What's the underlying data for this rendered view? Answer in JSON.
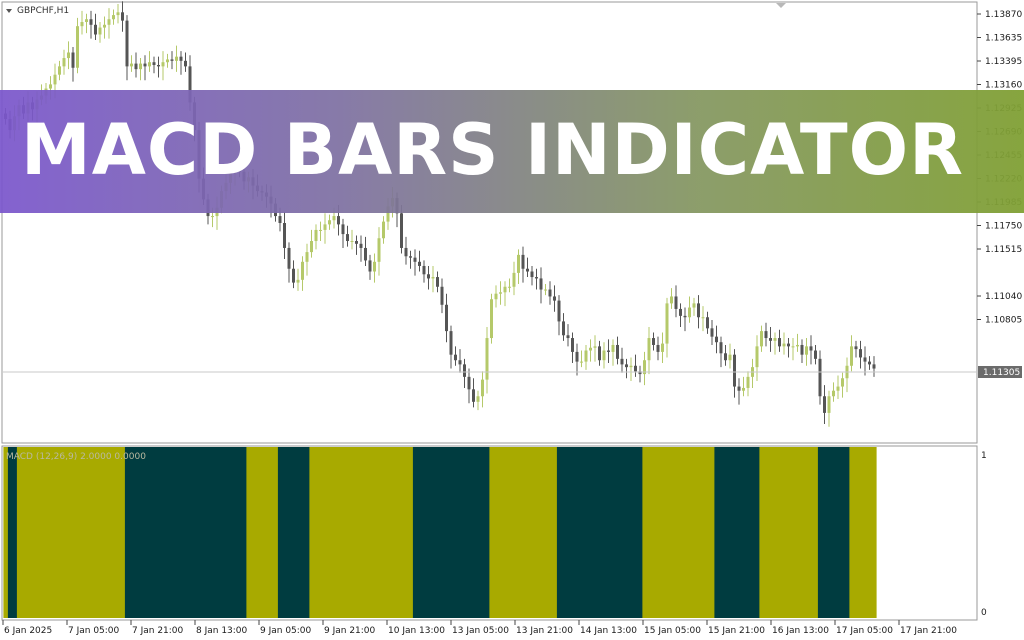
{
  "window": {
    "symbol_label": "GBPCHF,H1"
  },
  "banner": {
    "title": "MACD BARS INDICATOR"
  },
  "price_axis": {
    "labels": [
      "1.13870",
      "1.13635",
      "1.13395",
      "1.13160",
      "1.12925",
      "1.12690",
      "1.12455",
      "1.12220",
      "1.11985",
      "1.11750",
      "1.11515",
      "1.11040",
      "1.10805"
    ],
    "current_price": "1.11305"
  },
  "indicator": {
    "label": "MACD (12,26,9) 2.0000 0.0000",
    "scale_top": "1",
    "scale_bottom": "0",
    "colors": {
      "up": "#a8aa00",
      "down": "#003c40"
    }
  },
  "time_axis": {
    "labels": [
      "6 Jan 2025",
      "7 Jan 05:00",
      "7 Jan 21:00",
      "8 Jan 13:00",
      "9 Jan 05:00",
      "9 Jan 21:00",
      "10 Jan 13:00",
      "13 Jan 05:00",
      "13 Jan 21:00",
      "14 Jan 13:00",
      "15 Jan 05:00",
      "15 Jan 21:00",
      "16 Jan 13:00",
      "17 Jan 05:00",
      "17 Jan 21:00"
    ]
  },
  "candle_colors": {
    "bull": "#b5c96a",
    "bear": "#555555"
  },
  "chart_data": {
    "type": "candlestick",
    "symbol": "GBPCHF",
    "timeframe": "H1",
    "ylim": [
      1.1075,
      1.1391
    ],
    "close": [
      1.1308,
      1.13,
      1.131,
      1.1318,
      1.1312,
      1.132,
      1.1315,
      1.1322,
      1.1325,
      1.133,
      1.1333,
      1.134,
      1.1346,
      1.1352,
      1.1356,
      1.1345,
      1.1375,
      1.1378,
      1.138,
      1.1376,
      1.1369,
      1.1374,
      1.1376,
      1.138,
      1.1383,
      1.1385,
      1.1379,
      1.1346,
      1.1348,
      1.1344,
      1.1348,
      1.1346,
      1.1349,
      1.1347,
      1.1346,
      1.1349,
      1.1351,
      1.135,
      1.1353,
      1.135,
      1.1346,
      1.132,
      1.13,
      1.1265,
      1.125,
      1.1238,
      1.1238,
      1.1244,
      1.1256,
      1.1262,
      1.127,
      1.1274,
      1.127,
      1.1263,
      1.1266,
      1.126,
      1.1256,
      1.1255,
      1.1252,
      1.1247,
      1.1238,
      1.1233,
      1.1215,
      1.12,
      1.119,
      1.1192,
      1.1205,
      1.1212,
      1.122,
      1.1228,
      1.1228,
      1.1232,
      1.1235,
      1.1238,
      1.1232,
      1.1225,
      1.122,
      1.122,
      1.1218,
      1.1215,
      1.1206,
      1.1198,
      1.1205,
      1.1222,
      1.1234,
      1.1245,
      1.1251,
      1.124,
      1.1215,
      1.1209,
      1.1208,
      1.1205,
      1.1202,
      1.1196,
      1.1193,
      1.1194,
      1.1187,
      1.1174,
      1.1155,
      1.1138,
      1.1134,
      1.1131,
      1.1122,
      1.1113,
      1.1104,
      1.1108,
      1.112,
      1.115,
      1.1178,
      1.1182,
      1.1183,
      1.1187,
      1.1187,
      1.1197,
      1.121,
      1.12,
      1.1198,
      1.1194,
      1.1193,
      1.1185,
      1.1185,
      1.118,
      1.1177,
      1.1162,
      1.1152,
      1.115,
      1.114,
      1.1133,
      1.1133,
      1.1141,
      1.1143,
      1.1144,
      1.1134,
      1.1141,
      1.114,
      1.1145,
      1.1135,
      1.1131,
      1.1129,
      1.113,
      1.1126,
      1.1124,
      1.1134,
      1.115,
      1.1145,
      1.114,
      1.1146,
      1.1175,
      1.118,
      1.1171,
      1.1166,
      1.1165,
      1.1172,
      1.1175,
      1.1165,
      1.1165,
      1.1157,
      1.1151,
      1.1147,
      1.1139,
      1.1134,
      1.1138,
      1.1115,
      1.1112,
      1.1114,
      1.1122,
      1.1129,
      1.1144,
      1.1155,
      1.115,
      1.1148,
      1.115,
      1.1144,
      1.1146,
      1.1144,
      1.1144,
      1.1145,
      1.1138,
      1.1144,
      1.1141,
      1.1135,
      1.1108,
      1.1096,
      1.1108,
      1.1112,
      1.1115,
      1.1121,
      1.113,
      1.1144,
      1.1142,
      1.1136,
      1.1133,
      1.1131,
      1.1128
    ],
    "macd_bars": [
      "up",
      "up",
      "up",
      "up",
      "up",
      "up",
      "up",
      "up",
      "up",
      "up",
      "up",
      "up",
      "up",
      "up",
      "up",
      "up",
      "up",
      "up",
      "up",
      "up",
      "up",
      "up",
      "up",
      "up",
      "up",
      "up",
      "up",
      "up",
      "up",
      "up",
      "up",
      "up",
      "up",
      "up",
      "up",
      "up",
      "up",
      "up",
      "up",
      "up",
      "up",
      "up",
      "up",
      "up",
      "up",
      "up",
      "up",
      "up",
      "up",
      "up",
      "up",
      "up",
      "up",
      "up",
      "up",
      "up",
      "up",
      "up",
      "up",
      "up",
      "up",
      "up",
      "up",
      "up",
      "up",
      "up",
      "up",
      "up",
      "up",
      "up",
      "up",
      "up",
      "up",
      "up",
      "up",
      "up",
      "up",
      "up",
      "up",
      "up",
      "up",
      "up",
      "up",
      "up",
      "up",
      "up",
      "up",
      "up",
      "up",
      "up",
      "up",
      "up",
      "up",
      "up",
      "up",
      "up",
      "up",
      "up",
      "up",
      "up",
      "up",
      "up",
      "up",
      "up",
      "up",
      "up",
      "up",
      "up",
      "up",
      "up",
      "up",
      "up",
      "up",
      "up",
      "up",
      "up",
      "up",
      "up",
      "up",
      "up",
      "up",
      "up",
      "up",
      "up",
      "up",
      "up",
      "up",
      "up",
      "up",
      "up",
      "up",
      "up",
      "up",
      "up",
      "up",
      "up",
      "up",
      "up",
      "up",
      "up",
      "up",
      "up",
      "up",
      "up",
      "up",
      "up",
      "up",
      "up",
      "up",
      "up",
      "up",
      "up",
      "up",
      "up",
      "up",
      "up",
      "up",
      "up",
      "up",
      "up",
      "up",
      "up",
      "up",
      "up",
      "up",
      "up",
      "up",
      "up",
      "up",
      "up",
      "up",
      "up",
      "up",
      "up",
      "up",
      "up",
      "up",
      "up",
      "up",
      "up",
      "up",
      "up",
      "up",
      "up",
      "up",
      "up",
      "up",
      "up",
      "up",
      "up",
      "up",
      "up",
      "up",
      "up",
      "up",
      "up"
    ]
  }
}
